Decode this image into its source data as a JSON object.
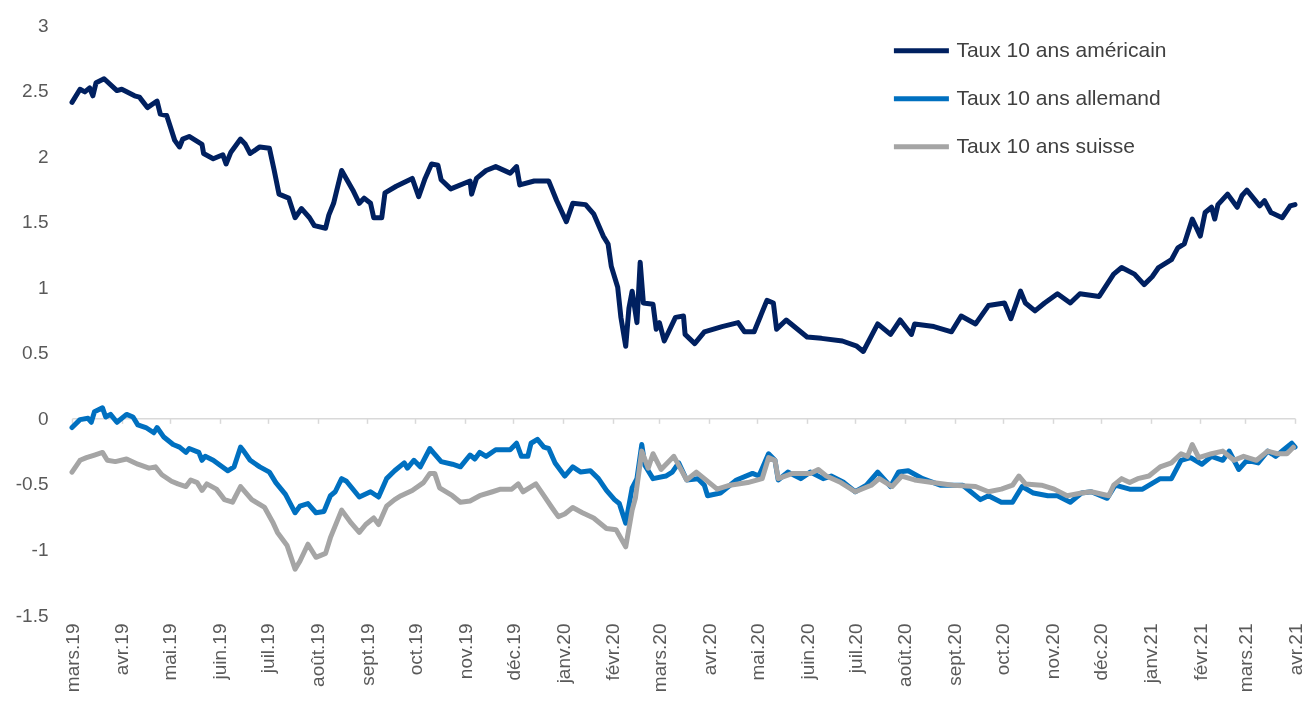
{
  "chart_data": {
    "type": "line",
    "legend": "top right",
    "xlim": [
      "2019-03-01",
      "2021-04-01"
    ],
    "xticks": [
      {
        "value": "2019-03-01",
        "label": "mars.19"
      },
      {
        "value": "2019-04-01",
        "label": "avr.19"
      },
      {
        "value": "2019-05-01",
        "label": "mai.19"
      },
      {
        "value": "2019-06-01",
        "label": "juin.19"
      },
      {
        "value": "2019-07-01",
        "label": "juil.19"
      },
      {
        "value": "2019-08-01",
        "label": "août.19"
      },
      {
        "value": "2019-09-01",
        "label": "sept.19"
      },
      {
        "value": "2019-10-01",
        "label": "oct.19"
      },
      {
        "value": "2019-11-01",
        "label": "nov.19"
      },
      {
        "value": "2019-12-01",
        "label": "déc.19"
      },
      {
        "value": "2020-01-01",
        "label": "janv.20"
      },
      {
        "value": "2020-02-01",
        "label": "févr.20"
      },
      {
        "value": "2020-03-01",
        "label": "mars.20"
      },
      {
        "value": "2020-04-01",
        "label": "avr.20"
      },
      {
        "value": "2020-05-01",
        "label": "mai.20"
      },
      {
        "value": "2020-06-01",
        "label": "juin.20"
      },
      {
        "value": "2020-07-01",
        "label": "juil.20"
      },
      {
        "value": "2020-08-01",
        "label": "août.20"
      },
      {
        "value": "2020-09-01",
        "label": "sept.20"
      },
      {
        "value": "2020-10-01",
        "label": "oct.20"
      },
      {
        "value": "2020-11-01",
        "label": "nov.20"
      },
      {
        "value": "2020-12-01",
        "label": "déc.20"
      },
      {
        "value": "2021-01-01",
        "label": "janv.21"
      },
      {
        "value": "2021-02-01",
        "label": "févr.21"
      },
      {
        "value": "2021-03-01",
        "label": "mars.21"
      },
      {
        "value": "2021-04-01",
        "label": "avr.21"
      }
    ],
    "ylim": [
      -1.5,
      3
    ],
    "yticks": [
      -1.5,
      -1,
      -0.5,
      0,
      0.5,
      1,
      1.5,
      2,
      2.5,
      3
    ],
    "series": [
      {
        "name": "Taux 10 ans américain",
        "color": "#002060",
        "x": [
          "2019-03-01",
          "2019-03-06",
          "2019-03-09",
          "2019-03-12",
          "2019-03-14",
          "2019-03-16",
          "2019-03-21",
          "2019-03-29",
          "2019-04-01",
          "2019-04-09",
          "2019-04-12",
          "2019-04-17",
          "2019-04-23",
          "2019-04-25",
          "2019-04-29",
          "2019-05-04",
          "2019-05-07",
          "2019-05-09",
          "2019-05-13",
          "2019-05-21",
          "2019-05-22",
          "2019-05-28",
          "2019-06-03",
          "2019-06-05",
          "2019-06-08",
          "2019-06-14",
          "2019-06-17",
          "2019-06-20",
          "2019-06-26",
          "2019-07-02",
          "2019-07-05",
          "2019-07-08",
          "2019-07-14",
          "2019-07-18",
          "2019-07-22",
          "2019-07-27",
          "2019-07-30",
          "2019-08-06",
          "2019-08-08",
          "2019-08-11",
          "2019-08-13",
          "2019-08-16",
          "2019-08-23",
          "2019-08-27",
          "2019-08-30",
          "2019-09-03",
          "2019-09-05",
          "2019-09-10",
          "2019-09-12",
          "2019-09-19",
          "2019-09-29",
          "2019-10-03",
          "2019-10-07",
          "2019-10-11",
          "2019-10-15",
          "2019-10-17",
          "2019-10-23",
          "2019-11-04",
          "2019-11-05",
          "2019-11-08",
          "2019-11-14",
          "2019-11-20",
          "2019-11-29",
          "2019-12-03",
          "2019-12-05",
          "2019-12-14",
          "2019-12-23",
          "2019-12-28",
          "2020-01-03",
          "2020-01-07",
          "2020-01-15",
          "2020-01-20",
          "2020-01-26",
          "2020-01-29",
          "2020-01-31",
          "2020-02-04",
          "2020-02-06",
          "2020-02-09",
          "2020-02-11",
          "2020-02-13",
          "2020-02-16",
          "2020-02-18",
          "2020-02-20",
          "2020-02-26",
          "2020-02-28",
          "2020-03-01",
          "2020-03-04",
          "2020-03-11",
          "2020-03-16",
          "2020-03-17",
          "2020-03-23",
          "2020-03-29",
          "2020-04-09",
          "2020-04-19",
          "2020-04-23",
          "2020-04-29",
          "2020-05-07",
          "2020-05-11",
          "2020-05-13",
          "2020-05-19",
          "2020-06-01",
          "2020-06-10",
          "2020-06-23",
          "2020-07-02",
          "2020-07-06",
          "2020-07-15",
          "2020-07-23",
          "2020-07-29",
          "2020-08-05",
          "2020-08-07",
          "2020-08-19",
          "2020-08-30",
          "2020-09-05",
          "2020-09-14",
          "2020-09-22",
          "2020-10-02",
          "2020-10-06",
          "2020-10-12",
          "2020-10-15",
          "2020-10-21",
          "2020-10-27",
          "2020-11-04",
          "2020-11-12",
          "2020-11-18",
          "2020-11-30",
          "2020-12-09",
          "2020-12-14",
          "2020-12-22",
          "2020-12-28",
          "2021-01-02",
          "2021-01-06",
          "2021-01-14",
          "2021-01-18",
          "2021-01-22",
          "2021-01-27",
          "2021-02-01",
          "2021-02-04",
          "2021-02-08",
          "2021-02-10",
          "2021-02-12",
          "2021-02-18",
          "2021-02-24",
          "2021-02-27",
          "2021-03-02",
          "2021-03-10",
          "2021-03-13",
          "2021-03-17",
          "2021-03-24",
          "2021-03-29",
          "2021-04-01"
        ],
        "values": [
          2.41,
          2.51,
          2.49,
          2.52,
          2.46,
          2.56,
          2.59,
          2.5,
          2.51,
          2.46,
          2.45,
          2.37,
          2.42,
          2.32,
          2.31,
          2.12,
          2.07,
          2.13,
          2.15,
          2.09,
          2.02,
          1.98,
          2.01,
          1.94,
          2.03,
          2.13,
          2.09,
          2.02,
          2.07,
          2.06,
          1.89,
          1.71,
          1.68,
          1.53,
          1.6,
          1.53,
          1.47,
          1.45,
          1.55,
          1.64,
          1.74,
          1.89,
          1.74,
          1.64,
          1.68,
          1.64,
          1.53,
          1.53,
          1.72,
          1.77,
          1.83,
          1.69,
          1.83,
          1.94,
          1.93,
          1.82,
          1.75,
          1.81,
          1.71,
          1.83,
          1.89,
          1.92,
          1.87,
          1.92,
          1.78,
          1.81,
          1.81,
          1.66,
          1.5,
          1.64,
          1.63,
          1.56,
          1.39,
          1.33,
          1.16,
          1.0,
          0.77,
          0.55,
          0.84,
          0.97,
          0.73,
          1.19,
          0.88,
          0.87,
          0.68,
          0.73,
          0.59,
          0.77,
          0.78,
          0.64,
          0.57,
          0.66,
          0.7,
          0.73,
          0.66,
          0.66,
          0.9,
          0.88,
          0.68,
          0.75,
          0.62,
          0.61,
          0.59,
          0.55,
          0.51,
          0.72,
          0.64,
          0.75,
          0.64,
          0.72,
          0.7,
          0.66,
          0.78,
          0.72,
          0.86,
          0.88,
          0.76,
          0.97,
          0.88,
          0.82,
          0.88,
          0.95,
          0.88,
          0.95,
          0.93,
          1.1,
          1.15,
          1.1,
          1.02,
          1.08,
          1.15,
          1.21,
          1.3,
          1.33,
          1.52,
          1.39,
          1.57,
          1.61,
          1.52,
          1.63,
          1.71,
          1.61,
          1.7,
          1.74,
          1.62,
          1.66,
          1.57,
          1.53,
          1.62,
          1.63
        ]
      },
      {
        "name": "Taux 10 ans allemand",
        "color": "#0070c0",
        "x": [
          "2019-03-01",
          "2019-03-06",
          "2019-03-11",
          "2019-03-13",
          "2019-03-15",
          "2019-03-20",
          "2019-03-22",
          "2019-03-25",
          "2019-03-29",
          "2019-04-04",
          "2019-04-08",
          "2019-04-11",
          "2019-04-16",
          "2019-04-21",
          "2019-04-23",
          "2019-04-27",
          "2019-05-03",
          "2019-05-07",
          "2019-05-11",
          "2019-05-13",
          "2019-05-19",
          "2019-05-21",
          "2019-05-23",
          "2019-05-28",
          "2019-06-06",
          "2019-06-10",
          "2019-06-14",
          "2019-06-16",
          "2019-06-20",
          "2019-06-26",
          "2019-07-02",
          "2019-07-06",
          "2019-07-12",
          "2019-07-18",
          "2019-07-21",
          "2019-07-26",
          "2019-07-31",
          "2019-08-05",
          "2019-08-09",
          "2019-08-12",
          "2019-08-16",
          "2019-08-19",
          "2019-08-27",
          "2019-09-03",
          "2019-09-08",
          "2019-09-13",
          "2019-09-18",
          "2019-09-24",
          "2019-09-26",
          "2019-09-30",
          "2019-10-04",
          "2019-10-10",
          "2019-10-12",
          "2019-10-17",
          "2019-10-24",
          "2019-10-29",
          "2019-11-04",
          "2019-11-07",
          "2019-11-10",
          "2019-11-14",
          "2019-11-20",
          "2019-11-29",
          "2019-12-03",
          "2019-12-06",
          "2019-12-10",
          "2019-12-12",
          "2019-12-16",
          "2019-12-20",
          "2019-12-23",
          "2019-12-27",
          "2020-01-02",
          "2020-01-07",
          "2020-01-12",
          "2020-01-18",
          "2020-01-23",
          "2020-01-28",
          "2020-02-02",
          "2020-02-05",
          "2020-02-09",
          "2020-02-13",
          "2020-02-16",
          "2020-02-19",
          "2020-02-21",
          "2020-02-26",
          "2020-03-05",
          "2020-03-09",
          "2020-03-13",
          "2020-03-18",
          "2020-03-25",
          "2020-03-29",
          "2020-03-31",
          "2020-04-08",
          "2020-04-13",
          "2020-04-18",
          "2020-04-28",
          "2020-05-02",
          "2020-05-08",
          "2020-05-12",
          "2020-05-14",
          "2020-05-20",
          "2020-05-28",
          "2020-06-03",
          "2020-06-11",
          "2020-06-16",
          "2020-06-24",
          "2020-07-01",
          "2020-07-08",
          "2020-07-15",
          "2020-07-23",
          "2020-07-28",
          "2020-08-03",
          "2020-08-12",
          "2020-08-23",
          "2020-09-06",
          "2020-09-17",
          "2020-09-22",
          "2020-09-30",
          "2020-10-07",
          "2020-10-13",
          "2020-10-20",
          "2020-10-29",
          "2020-11-04",
          "2020-11-12",
          "2020-11-19",
          "2020-11-25",
          "2020-12-05",
          "2020-12-10",
          "2020-12-19",
          "2020-12-27",
          "2021-01-07",
          "2021-01-14",
          "2021-01-20",
          "2021-01-26",
          "2021-02-02",
          "2021-02-08",
          "2021-02-15",
          "2021-02-19",
          "2021-02-25",
          "2021-03-02",
          "2021-03-09",
          "2021-03-15",
          "2021-03-20",
          "2021-03-25",
          "2021-03-30",
          "2021-04-01"
        ],
        "values": [
          -0.07,
          -0.01,
          0.0,
          -0.03,
          0.05,
          0.08,
          0.01,
          0.03,
          -0.03,
          0.03,
          0.01,
          -0.05,
          -0.07,
          -0.11,
          -0.07,
          -0.14,
          -0.2,
          -0.22,
          -0.26,
          -0.23,
          -0.26,
          -0.32,
          -0.29,
          -0.32,
          -0.4,
          -0.37,
          -0.22,
          -0.25,
          -0.32,
          -0.37,
          -0.41,
          -0.49,
          -0.58,
          -0.72,
          -0.67,
          -0.65,
          -0.72,
          -0.71,
          -0.59,
          -0.56,
          -0.46,
          -0.48,
          -0.6,
          -0.56,
          -0.6,
          -0.46,
          -0.4,
          -0.34,
          -0.38,
          -0.32,
          -0.37,
          -0.23,
          -0.26,
          -0.33,
          -0.35,
          -0.37,
          -0.28,
          -0.31,
          -0.26,
          -0.29,
          -0.24,
          -0.24,
          -0.19,
          -0.29,
          -0.29,
          -0.19,
          -0.16,
          -0.22,
          -0.23,
          -0.34,
          -0.44,
          -0.37,
          -0.41,
          -0.4,
          -0.46,
          -0.55,
          -0.62,
          -0.65,
          -0.8,
          -0.53,
          -0.46,
          -0.2,
          -0.36,
          -0.46,
          -0.44,
          -0.41,
          -0.34,
          -0.47,
          -0.46,
          -0.51,
          -0.59,
          -0.57,
          -0.52,
          -0.47,
          -0.42,
          -0.44,
          -0.27,
          -0.32,
          -0.47,
          -0.41,
          -0.46,
          -0.41,
          -0.46,
          -0.44,
          -0.49,
          -0.56,
          -0.51,
          -0.41,
          -0.52,
          -0.41,
          -0.4,
          -0.46,
          -0.51,
          -0.51,
          -0.62,
          -0.59,
          -0.64,
          -0.64,
          -0.52,
          -0.57,
          -0.59,
          -0.59,
          -0.64,
          -0.57,
          -0.56,
          -0.61,
          -0.51,
          -0.54,
          -0.54,
          -0.46,
          -0.46,
          -0.32,
          -0.3,
          -0.35,
          -0.29,
          -0.32,
          -0.25,
          -0.39,
          -0.32,
          -0.34,
          -0.25,
          -0.29,
          -0.24,
          -0.19,
          -0.22
        ]
      },
      {
        "name": "Taux 10 ans suisse",
        "color": "#a5a5a5",
        "x": [
          "2019-03-01",
          "2019-03-06",
          "2019-03-10",
          "2019-03-15",
          "2019-03-20",
          "2019-03-23",
          "2019-03-28",
          "2019-04-04",
          "2019-04-11",
          "2019-04-18",
          "2019-04-22",
          "2019-04-26",
          "2019-05-02",
          "2019-05-06",
          "2019-05-11",
          "2019-05-14",
          "2019-05-18",
          "2019-05-21",
          "2019-05-24",
          "2019-05-30",
          "2019-06-04",
          "2019-06-09",
          "2019-06-14",
          "2019-06-21",
          "2019-06-29",
          "2019-07-04",
          "2019-07-07",
          "2019-07-13",
          "2019-07-18",
          "2019-07-21",
          "2019-07-26",
          "2019-07-31",
          "2019-08-06",
          "2019-08-09",
          "2019-08-16",
          "2019-08-22",
          "2019-08-27",
          "2019-08-31",
          "2019-09-05",
          "2019-09-08",
          "2019-09-13",
          "2019-09-18",
          "2019-09-22",
          "2019-09-29",
          "2019-10-06",
          "2019-10-10",
          "2019-10-13",
          "2019-10-16",
          "2019-10-24",
          "2019-10-29",
          "2019-11-04",
          "2019-11-10",
          "2019-11-18",
          "2019-11-23",
          "2019-11-30",
          "2019-12-04",
          "2019-12-07",
          "2019-12-15",
          "2019-12-20",
          "2019-12-25",
          "2019-12-29",
          "2020-01-02",
          "2020-01-07",
          "2020-01-13",
          "2020-01-20",
          "2020-01-28",
          "2020-02-03",
          "2020-02-09",
          "2020-02-13",
          "2020-02-15",
          "2020-02-19",
          "2020-02-23",
          "2020-02-26",
          "2020-03-02",
          "2020-03-10",
          "2020-03-18",
          "2020-03-24",
          "2020-03-29",
          "2020-04-06",
          "2020-04-14",
          "2020-04-25",
          "2020-05-04",
          "2020-05-08",
          "2020-05-12",
          "2020-05-14",
          "2020-05-23",
          "2020-06-03",
          "2020-06-08",
          "2020-06-13",
          "2020-06-22",
          "2020-07-01",
          "2020-07-11",
          "2020-07-16",
          "2020-07-24",
          "2020-07-30",
          "2020-08-07",
          "2020-08-18",
          "2020-08-31",
          "2020-09-14",
          "2020-09-22",
          "2020-09-30",
          "2020-10-07",
          "2020-10-11",
          "2020-10-15",
          "2020-10-25",
          "2020-11-02",
          "2020-11-10",
          "2020-11-19",
          "2020-11-25",
          "2020-12-06",
          "2020-12-09",
          "2020-12-14",
          "2020-12-19",
          "2020-12-24",
          "2020-12-31",
          "2021-01-07",
          "2021-01-14",
          "2021-01-20",
          "2021-01-24",
          "2021-01-27",
          "2021-01-31",
          "2021-02-08",
          "2021-02-15",
          "2021-02-22",
          "2021-02-28",
          "2021-03-08",
          "2021-03-15",
          "2021-03-21",
          "2021-03-27",
          "2021-03-31"
        ],
        "values": [
          -0.41,
          -0.32,
          -0.3,
          -0.28,
          -0.26,
          -0.32,
          -0.33,
          -0.31,
          -0.35,
          -0.38,
          -0.37,
          -0.43,
          -0.48,
          -0.5,
          -0.52,
          -0.47,
          -0.49,
          -0.55,
          -0.5,
          -0.54,
          -0.62,
          -0.64,
          -0.52,
          -0.62,
          -0.68,
          -0.79,
          -0.87,
          -0.97,
          -1.15,
          -1.09,
          -0.96,
          -1.06,
          -1.03,
          -0.91,
          -0.7,
          -0.8,
          -0.87,
          -0.81,
          -0.76,
          -0.81,
          -0.67,
          -0.62,
          -0.59,
          -0.55,
          -0.49,
          -0.42,
          -0.42,
          -0.53,
          -0.59,
          -0.64,
          -0.63,
          -0.59,
          -0.56,
          -0.54,
          -0.54,
          -0.5,
          -0.56,
          -0.5,
          -0.59,
          -0.68,
          -0.75,
          -0.73,
          -0.68,
          -0.72,
          -0.76,
          -0.84,
          -0.85,
          -0.98,
          -0.7,
          -0.61,
          -0.25,
          -0.38,
          -0.27,
          -0.39,
          -0.29,
          -0.47,
          -0.41,
          -0.46,
          -0.54,
          -0.51,
          -0.49,
          -0.46,
          -0.3,
          -0.32,
          -0.46,
          -0.42,
          -0.42,
          -0.39,
          -0.44,
          -0.49,
          -0.56,
          -0.51,
          -0.46,
          -0.52,
          -0.44,
          -0.47,
          -0.49,
          -0.51,
          -0.52,
          -0.56,
          -0.54,
          -0.51,
          -0.44,
          -0.5,
          -0.51,
          -0.54,
          -0.59,
          -0.57,
          -0.56,
          -0.59,
          -0.51,
          -0.46,
          -0.49,
          -0.46,
          -0.44,
          -0.37,
          -0.34,
          -0.27,
          -0.29,
          -0.2,
          -0.3,
          -0.27,
          -0.25,
          -0.32,
          -0.29,
          -0.32,
          -0.25,
          -0.27,
          -0.27,
          -0.22
        ]
      }
    ]
  }
}
